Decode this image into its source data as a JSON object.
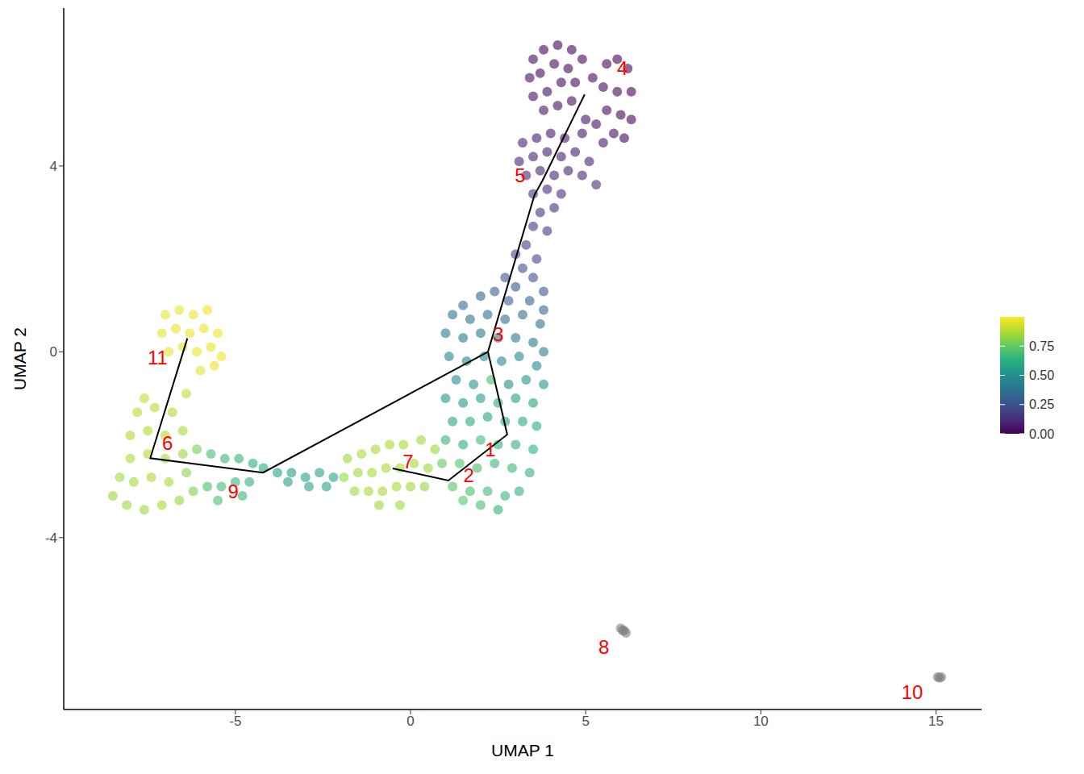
{
  "chart_data": {
    "type": "scatter",
    "x_label": "UMAP 1",
    "y_label": "UMAP 2",
    "xlim": [
      -9.9,
      16.3
    ],
    "ylim": [
      -7.7,
      7.4
    ],
    "xticks": [
      -5,
      0,
      5,
      10,
      15
    ],
    "yticks": [
      -4,
      0,
      4
    ],
    "grid": false,
    "colorbar": {
      "range": [
        0,
        1
      ],
      "ticks": [
        {
          "value": 0,
          "label": "0.00"
        },
        {
          "value": 0.25,
          "label": "0.25"
        },
        {
          "value": 0.5,
          "label": "0.50"
        },
        {
          "value": 0.75,
          "label": "0.75"
        }
      ]
    },
    "points": [
      {
        "x": 3.5,
        "y": 6.3,
        "pseudotime": 0.02
      },
      {
        "x": 3.8,
        "y": 6.5,
        "pseudotime": 0.01
      },
      {
        "x": 4.2,
        "y": 6.6,
        "pseudotime": 0.0
      },
      {
        "x": 4.6,
        "y": 6.5,
        "pseudotime": 0.01
      },
      {
        "x": 3.4,
        "y": 5.9,
        "pseudotime": 0.03
      },
      {
        "x": 3.7,
        "y": 6.0,
        "pseudotime": 0.02
      },
      {
        "x": 4.1,
        "y": 6.2,
        "pseudotime": 0.01
      },
      {
        "x": 4.5,
        "y": 6.1,
        "pseudotime": 0.02
      },
      {
        "x": 4.9,
        "y": 6.3,
        "pseudotime": 0.01
      },
      {
        "x": 3.5,
        "y": 5.5,
        "pseudotime": 0.04
      },
      {
        "x": 3.9,
        "y": 5.6,
        "pseudotime": 0.03
      },
      {
        "x": 4.3,
        "y": 5.8,
        "pseudotime": 0.02
      },
      {
        "x": 4.7,
        "y": 5.8,
        "pseudotime": 0.02
      },
      {
        "x": 3.8,
        "y": 5.2,
        "pseudotime": 0.05
      },
      {
        "x": 4.2,
        "y": 5.3,
        "pseudotime": 0.04
      },
      {
        "x": 4.6,
        "y": 5.4,
        "pseudotime": 0.03
      },
      {
        "x": 5.2,
        "y": 5.9,
        "pseudotime": 0.02
      },
      {
        "x": 5.6,
        "y": 6.2,
        "pseudotime": 0.01
      },
      {
        "x": 5.9,
        "y": 6.3,
        "pseudotime": 0.0
      },
      {
        "x": 6.2,
        "y": 6.1,
        "pseudotime": 0.0
      },
      {
        "x": 5.5,
        "y": 5.7,
        "pseudotime": 0.01
      },
      {
        "x": 5.9,
        "y": 5.6,
        "pseudotime": 0.0
      },
      {
        "x": 6.3,
        "y": 5.6,
        "pseudotime": 0.0
      },
      {
        "x": 5.6,
        "y": 5.2,
        "pseudotime": 0.02
      },
      {
        "x": 6.0,
        "y": 5.1,
        "pseudotime": 0.01
      },
      {
        "x": 6.3,
        "y": 5.0,
        "pseudotime": 0.01
      },
      {
        "x": 5.3,
        "y": 4.9,
        "pseudotime": 0.04
      },
      {
        "x": 5.8,
        "y": 4.7,
        "pseudotime": 0.03
      },
      {
        "x": 6.1,
        "y": 4.6,
        "pseudotime": 0.02
      },
      {
        "x": 5.0,
        "y": 5.0,
        "pseudotime": 0.05
      },
      {
        "x": 5.5,
        "y": 4.5,
        "pseudotime": 0.06
      },
      {
        "x": 4.9,
        "y": 4.7,
        "pseudotime": 0.06
      },
      {
        "x": 3.2,
        "y": 4.5,
        "pseudotime": 0.08
      },
      {
        "x": 3.6,
        "y": 4.6,
        "pseudotime": 0.07
      },
      {
        "x": 4.0,
        "y": 4.7,
        "pseudotime": 0.06
      },
      {
        "x": 4.4,
        "y": 4.6,
        "pseudotime": 0.06
      },
      {
        "x": 3.1,
        "y": 4.1,
        "pseudotime": 0.1
      },
      {
        "x": 3.5,
        "y": 4.2,
        "pseudotime": 0.09
      },
      {
        "x": 3.9,
        "y": 4.3,
        "pseudotime": 0.08
      },
      {
        "x": 4.3,
        "y": 4.2,
        "pseudotime": 0.08
      },
      {
        "x": 4.7,
        "y": 4.3,
        "pseudotime": 0.07
      },
      {
        "x": 5.1,
        "y": 4.1,
        "pseudotime": 0.09
      },
      {
        "x": 3.3,
        "y": 3.8,
        "pseudotime": 0.11
      },
      {
        "x": 3.7,
        "y": 3.9,
        "pseudotime": 0.1
      },
      {
        "x": 4.1,
        "y": 3.8,
        "pseudotime": 0.1
      },
      {
        "x": 4.5,
        "y": 3.9,
        "pseudotime": 0.09
      },
      {
        "x": 4.9,
        "y": 3.8,
        "pseudotime": 0.1
      },
      {
        "x": 5.3,
        "y": 3.6,
        "pseudotime": 0.12
      },
      {
        "x": 3.5,
        "y": 3.4,
        "pseudotime": 0.13
      },
      {
        "x": 3.9,
        "y": 3.5,
        "pseudotime": 0.12
      },
      {
        "x": 4.3,
        "y": 3.4,
        "pseudotime": 0.12
      },
      {
        "x": 3.7,
        "y": 3.0,
        "pseudotime": 0.15
      },
      {
        "x": 4.1,
        "y": 3.1,
        "pseudotime": 0.14
      },
      {
        "x": 3.5,
        "y": 2.7,
        "pseudotime": 0.17
      },
      {
        "x": 3.9,
        "y": 2.6,
        "pseudotime": 0.16
      },
      {
        "x": 3.3,
        "y": 2.3,
        "pseudotime": 0.19
      },
      {
        "x": 3.0,
        "y": 2.1,
        "pseudotime": 0.2
      },
      {
        "x": 3.6,
        "y": 2.0,
        "pseudotime": 0.21
      },
      {
        "x": 3.2,
        "y": 1.8,
        "pseudotime": 0.23
      },
      {
        "x": 2.7,
        "y": 1.6,
        "pseudotime": 0.26
      },
      {
        "x": 3.5,
        "y": 1.6,
        "pseudotime": 0.24
      },
      {
        "x": 3.0,
        "y": 1.4,
        "pseudotime": 0.27
      },
      {
        "x": 3.8,
        "y": 1.3,
        "pseudotime": 0.27
      },
      {
        "x": 2.4,
        "y": 1.3,
        "pseudotime": 0.3
      },
      {
        "x": 2.8,
        "y": 1.1,
        "pseudotime": 0.3
      },
      {
        "x": 3.4,
        "y": 1.1,
        "pseudotime": 0.3
      },
      {
        "x": 3.8,
        "y": 0.9,
        "pseudotime": 0.32
      },
      {
        "x": 2.0,
        "y": 1.2,
        "pseudotime": 0.33
      },
      {
        "x": 1.5,
        "y": 1.0,
        "pseudotime": 0.35
      },
      {
        "x": 1.2,
        "y": 0.8,
        "pseudotime": 0.38
      },
      {
        "x": 1.7,
        "y": 0.7,
        "pseudotime": 0.37
      },
      {
        "x": 2.2,
        "y": 0.8,
        "pseudotime": 0.36
      },
      {
        "x": 2.7,
        "y": 0.7,
        "pseudotime": 0.36
      },
      {
        "x": 3.2,
        "y": 0.8,
        "pseudotime": 0.35
      },
      {
        "x": 3.7,
        "y": 0.6,
        "pseudotime": 0.37
      },
      {
        "x": 1.0,
        "y": 0.4,
        "pseudotime": 0.42
      },
      {
        "x": 1.5,
        "y": 0.3,
        "pseudotime": 0.4
      },
      {
        "x": 2.0,
        "y": 0.4,
        "pseudotime": 0.4
      },
      {
        "x": 2.5,
        "y": 0.3,
        "pseudotime": 0.42
      },
      {
        "x": 3.0,
        "y": 0.3,
        "pseudotime": 0.4
      },
      {
        "x": 3.5,
        "y": 0.2,
        "pseudotime": 0.4
      },
      {
        "x": 3.8,
        "y": 0.0,
        "pseudotime": 0.42
      },
      {
        "x": 1.1,
        "y": -0.1,
        "pseudotime": 0.45
      },
      {
        "x": 1.6,
        "y": -0.2,
        "pseudotime": 0.44
      },
      {
        "x": 2.1,
        "y": -0.1,
        "pseudotime": 0.45
      },
      {
        "x": 2.6,
        "y": -0.2,
        "pseudotime": 0.46
      },
      {
        "x": 3.1,
        "y": -0.1,
        "pseudotime": 0.44
      },
      {
        "x": 3.6,
        "y": -0.3,
        "pseudotime": 0.46
      },
      {
        "x": 1.3,
        "y": -0.6,
        "pseudotime": 0.48
      },
      {
        "x": 1.8,
        "y": -0.7,
        "pseudotime": 0.5
      },
      {
        "x": 2.3,
        "y": -0.6,
        "pseudotime": 0.7
      },
      {
        "x": 2.8,
        "y": -0.7,
        "pseudotime": 0.48
      },
      {
        "x": 3.3,
        "y": -0.6,
        "pseudotime": 0.5
      },
      {
        "x": 3.8,
        "y": -0.7,
        "pseudotime": 0.52
      },
      {
        "x": 1.0,
        "y": -1.0,
        "pseudotime": 0.52
      },
      {
        "x": 1.5,
        "y": -1.1,
        "pseudotime": 0.53
      },
      {
        "x": 2.0,
        "y": -1.0,
        "pseudotime": 0.55
      },
      {
        "x": 2.5,
        "y": -1.1,
        "pseudotime": 0.6
      },
      {
        "x": 3.0,
        "y": -1.0,
        "pseudotime": 0.55
      },
      {
        "x": 3.5,
        "y": -1.1,
        "pseudotime": 0.57
      },
      {
        "x": 1.2,
        "y": -1.5,
        "pseudotime": 0.58
      },
      {
        "x": 1.7,
        "y": -1.5,
        "pseudotime": 0.6
      },
      {
        "x": 2.2,
        "y": -1.4,
        "pseudotime": 0.58
      },
      {
        "x": 2.7,
        "y": -1.5,
        "pseudotime": 0.6
      },
      {
        "x": 3.2,
        "y": -1.5,
        "pseudotime": 0.6
      },
      {
        "x": 3.6,
        "y": -1.6,
        "pseudotime": 0.62
      },
      {
        "x": 1.0,
        "y": -1.9,
        "pseudotime": 0.65
      },
      {
        "x": 1.5,
        "y": -2.0,
        "pseudotime": 0.62
      },
      {
        "x": 2.0,
        "y": -1.9,
        "pseudotime": 0.68
      },
      {
        "x": 2.5,
        "y": -2.0,
        "pseudotime": 0.62
      },
      {
        "x": 3.0,
        "y": -2.0,
        "pseudotime": 0.64
      },
      {
        "x": 3.5,
        "y": -2.1,
        "pseudotime": 0.63
      },
      {
        "x": 0.9,
        "y": -2.4,
        "pseudotime": 0.75
      },
      {
        "x": 1.4,
        "y": -2.4,
        "pseudotime": 0.72
      },
      {
        "x": 1.9,
        "y": -2.5,
        "pseudotime": 0.7
      },
      {
        "x": 2.4,
        "y": -2.4,
        "pseudotime": 0.66
      },
      {
        "x": 2.9,
        "y": -2.5,
        "pseudotime": 0.66
      },
      {
        "x": 3.4,
        "y": -2.6,
        "pseudotime": 0.65
      },
      {
        "x": 1.2,
        "y": -2.9,
        "pseudotime": 0.72
      },
      {
        "x": 1.7,
        "y": -3.0,
        "pseudotime": 0.7
      },
      {
        "x": 2.2,
        "y": -3.0,
        "pseudotime": 0.68
      },
      {
        "x": 2.7,
        "y": -3.1,
        "pseudotime": 0.66
      },
      {
        "x": 3.1,
        "y": -3.0,
        "pseudotime": 0.64
      },
      {
        "x": 2.0,
        "y": -3.3,
        "pseudotime": 0.68
      },
      {
        "x": 2.5,
        "y": -3.4,
        "pseudotime": 0.65
      },
      {
        "x": 1.5,
        "y": -3.2,
        "pseudotime": 0.73
      },
      {
        "x": -1.8,
        "y": -2.3,
        "pseudotime": 0.85
      },
      {
        "x": -1.4,
        "y": -2.2,
        "pseudotime": 0.86
      },
      {
        "x": -1.0,
        "y": -2.1,
        "pseudotime": 0.86
      },
      {
        "x": -0.6,
        "y": -2.0,
        "pseudotime": 0.87
      },
      {
        "x": -0.2,
        "y": -2.0,
        "pseudotime": 0.86
      },
      {
        "x": 0.3,
        "y": -1.9,
        "pseudotime": 0.85
      },
      {
        "x": 0.7,
        "y": -2.1,
        "pseudotime": 0.84
      },
      {
        "x": -1.9,
        "y": -2.7,
        "pseudotime": 0.84
      },
      {
        "x": -1.5,
        "y": -2.6,
        "pseudotime": 0.85
      },
      {
        "x": -1.1,
        "y": -2.6,
        "pseudotime": 0.86
      },
      {
        "x": -0.7,
        "y": -2.5,
        "pseudotime": 0.87
      },
      {
        "x": -0.3,
        "y": -2.5,
        "pseudotime": 0.87
      },
      {
        "x": 0.1,
        "y": -2.4,
        "pseudotime": 0.86
      },
      {
        "x": 0.5,
        "y": -2.5,
        "pseudotime": 0.85
      },
      {
        "x": -1.6,
        "y": -3.0,
        "pseudotime": 0.85
      },
      {
        "x": -1.2,
        "y": -3.0,
        "pseudotime": 0.86
      },
      {
        "x": -0.8,
        "y": -3.0,
        "pseudotime": 0.86
      },
      {
        "x": -0.4,
        "y": -2.9,
        "pseudotime": 0.86
      },
      {
        "x": 0.0,
        "y": -2.9,
        "pseudotime": 0.85
      },
      {
        "x": 0.4,
        "y": -2.9,
        "pseudotime": 0.84
      },
      {
        "x": -0.9,
        "y": -3.3,
        "pseudotime": 0.85
      },
      {
        "x": -0.3,
        "y": -3.3,
        "pseudotime": 0.85
      },
      {
        "x": -2.2,
        "y": -2.7,
        "pseudotime": 0.58
      },
      {
        "x": -2.6,
        "y": -2.6,
        "pseudotime": 0.57
      },
      {
        "x": -3.0,
        "y": -2.7,
        "pseudotime": 0.56
      },
      {
        "x": -3.4,
        "y": -2.6,
        "pseudotime": 0.56
      },
      {
        "x": -3.8,
        "y": -2.6,
        "pseudotime": 0.57
      },
      {
        "x": -4.2,
        "y": -2.5,
        "pseudotime": 0.6
      },
      {
        "x": -2.4,
        "y": -2.9,
        "pseudotime": 0.58
      },
      {
        "x": -2.9,
        "y": -2.9,
        "pseudotime": 0.57
      },
      {
        "x": -3.5,
        "y": -2.8,
        "pseudotime": 0.56
      },
      {
        "x": -4.5,
        "y": -2.4,
        "pseudotime": 0.63
      },
      {
        "x": -4.9,
        "y": -2.3,
        "pseudotime": 0.65
      },
      {
        "x": -5.3,
        "y": -2.3,
        "pseudotime": 0.67
      },
      {
        "x": -5.7,
        "y": -2.2,
        "pseudotime": 0.7
      },
      {
        "x": -4.6,
        "y": -2.8,
        "pseudotime": 0.64
      },
      {
        "x": -5.0,
        "y": -2.8,
        "pseudotime": 0.66
      },
      {
        "x": -5.4,
        "y": -2.9,
        "pseudotime": 0.68
      },
      {
        "x": -5.8,
        "y": -2.9,
        "pseudotime": 0.7
      },
      {
        "x": -4.8,
        "y": -3.1,
        "pseudotime": 0.66
      },
      {
        "x": -5.5,
        "y": -3.2,
        "pseudotime": 0.7
      },
      {
        "x": -8.5,
        "y": -3.1,
        "pseudotime": 0.84
      },
      {
        "x": -8.1,
        "y": -3.3,
        "pseudotime": 0.85
      },
      {
        "x": -7.6,
        "y": -3.4,
        "pseudotime": 0.85
      },
      {
        "x": -7.1,
        "y": -3.3,
        "pseudotime": 0.86
      },
      {
        "x": -6.6,
        "y": -3.2,
        "pseudotime": 0.84
      },
      {
        "x": -6.2,
        "y": -3.0,
        "pseudotime": 0.8
      },
      {
        "x": -8.3,
        "y": -2.7,
        "pseudotime": 0.86
      },
      {
        "x": -7.9,
        "y": -2.8,
        "pseudotime": 0.86
      },
      {
        "x": -7.4,
        "y": -2.7,
        "pseudotime": 0.87
      },
      {
        "x": -6.9,
        "y": -2.8,
        "pseudotime": 0.86
      },
      {
        "x": -6.4,
        "y": -2.6,
        "pseudotime": 0.82
      },
      {
        "x": -8.0,
        "y": -2.3,
        "pseudotime": 0.87
      },
      {
        "x": -7.5,
        "y": -2.2,
        "pseudotime": 0.88
      },
      {
        "x": -7.0,
        "y": -2.3,
        "pseudotime": 0.87
      },
      {
        "x": -6.5,
        "y": -2.2,
        "pseudotime": 0.85
      },
      {
        "x": -6.1,
        "y": -2.1,
        "pseudotime": 0.78
      },
      {
        "x": -8.0,
        "y": -1.8,
        "pseudotime": 0.88
      },
      {
        "x": -7.5,
        "y": -1.7,
        "pseudotime": 0.88
      },
      {
        "x": -7.0,
        "y": -1.8,
        "pseudotime": 0.88
      },
      {
        "x": -6.5,
        "y": -1.7,
        "pseudotime": 0.86
      },
      {
        "x": -7.8,
        "y": -1.3,
        "pseudotime": 0.89
      },
      {
        "x": -7.3,
        "y": -1.2,
        "pseudotime": 0.89
      },
      {
        "x": -6.8,
        "y": -1.3,
        "pseudotime": 0.88
      },
      {
        "x": -6.4,
        "y": -0.9,
        "pseudotime": 0.9
      },
      {
        "x": -7.6,
        "y": -1.0,
        "pseudotime": 0.9
      },
      {
        "x": -7.0,
        "y": 0.8,
        "pseudotime": 0.97
      },
      {
        "x": -6.6,
        "y": 0.9,
        "pseudotime": 0.97
      },
      {
        "x": -6.2,
        "y": 0.8,
        "pseudotime": 0.97
      },
      {
        "x": -5.8,
        "y": 0.9,
        "pseudotime": 0.98
      },
      {
        "x": -7.1,
        "y": 0.4,
        "pseudotime": 0.96
      },
      {
        "x": -6.7,
        "y": 0.5,
        "pseudotime": 0.97
      },
      {
        "x": -6.3,
        "y": 0.4,
        "pseudotime": 0.97
      },
      {
        "x": -5.9,
        "y": 0.5,
        "pseudotime": 0.97
      },
      {
        "x": -5.5,
        "y": 0.4,
        "pseudotime": 0.98
      },
      {
        "x": -6.9,
        "y": 0.0,
        "pseudotime": 0.96
      },
      {
        "x": -6.5,
        "y": 0.1,
        "pseudotime": 0.96
      },
      {
        "x": -6.1,
        "y": 0.0,
        "pseudotime": 0.97
      },
      {
        "x": -5.7,
        "y": 0.1,
        "pseudotime": 0.97
      },
      {
        "x": -5.4,
        "y": -0.1,
        "pseudotime": 0.98
      },
      {
        "x": -6.0,
        "y": -0.4,
        "pseudotime": 0.96
      },
      {
        "x": -5.6,
        "y": -0.3,
        "pseudotime": 0.97
      },
      {
        "x": 6.0,
        "y": -5.95,
        "pseudotime": null
      },
      {
        "x": 6.1,
        "y": -6.0,
        "pseudotime": null
      },
      {
        "x": 6.15,
        "y": -6.05,
        "pseudotime": null
      },
      {
        "x": 6.05,
        "y": -6.0,
        "pseudotime": null
      },
      {
        "x": 15.05,
        "y": -7.0,
        "pseudotime": null
      },
      {
        "x": 15.1,
        "y": -7.02,
        "pseudotime": null
      },
      {
        "x": 15.15,
        "y": -7.0,
        "pseudotime": null
      }
    ],
    "trajectory": [
      {
        "x": [
          4.97,
          3.77,
          3.54,
          2.21,
          2.76,
          1.08,
          -0.51
        ],
        "y": [
          5.54,
          3.69,
          3.38,
          0.0,
          -1.78,
          -2.77,
          -2.51
        ]
      },
      {
        "x": [
          2.21,
          -4.21,
          -7.43,
          -6.37
        ],
        "y": [
          0.0,
          -2.6,
          -2.29,
          0.29
        ]
      }
    ],
    "cluster_labels": [
      {
        "label": "4",
        "x": 6.05,
        "y": 6.11
      },
      {
        "label": "5",
        "x": 3.13,
        "y": 3.79
      },
      {
        "label": "3",
        "x": 2.5,
        "y": 0.38
      },
      {
        "label": "1",
        "x": 2.28,
        "y": -2.11
      },
      {
        "label": "2",
        "x": 1.66,
        "y": -2.65
      },
      {
        "label": "7",
        "x": -0.07,
        "y": -2.37
      },
      {
        "label": "6",
        "x": -6.94,
        "y": -1.96
      },
      {
        "label": "9",
        "x": -5.06,
        "y": -3.01
      },
      {
        "label": "11",
        "x": -7.22,
        "y": -0.12
      },
      {
        "label": "8",
        "x": 5.52,
        "y": -6.36
      },
      {
        "label": "10",
        "x": 14.32,
        "y": -7.32
      }
    ]
  }
}
